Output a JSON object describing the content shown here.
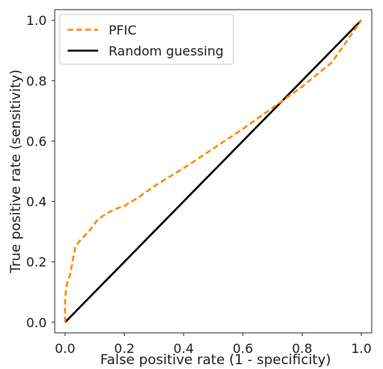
{
  "chart_data": {
    "type": "line",
    "title": "",
    "xlabel": "False positive rate (1 - specificity)",
    "ylabel": "True positive rate (sensitivity)",
    "xlim": [
      -0.035,
      1.035
    ],
    "ylim": [
      -0.035,
      1.035
    ],
    "xticks": [
      0.0,
      0.2,
      0.4,
      0.6,
      0.8,
      1.0
    ],
    "yticks": [
      0.0,
      0.2,
      0.4,
      0.6,
      0.8,
      1.0
    ],
    "xtick_labels": [
      "0.0",
      "0.2",
      "0.4",
      "0.6",
      "0.8",
      "1.0"
    ],
    "ytick_labels": [
      "0.0",
      "0.2",
      "0.4",
      "0.6",
      "0.8",
      "1.0"
    ],
    "grid": false,
    "legend_position": "top-left",
    "series": [
      {
        "name": "PFIC",
        "style": "dashed",
        "color": "#ff8c00",
        "x": [
          0.0,
          0.0,
          0.005,
          0.01,
          0.015,
          0.02,
          0.025,
          0.035,
          0.05,
          0.08,
          0.11,
          0.14,
          0.17,
          0.2,
          0.25,
          0.3,
          0.4,
          0.5,
          0.6,
          0.7,
          0.8,
          0.9,
          1.0
        ],
        "y": [
          0.0,
          0.08,
          0.12,
          0.14,
          0.15,
          0.17,
          0.2,
          0.25,
          0.27,
          0.3,
          0.34,
          0.36,
          0.375,
          0.385,
          0.415,
          0.45,
          0.51,
          0.575,
          0.64,
          0.71,
          0.78,
          0.86,
          1.0
        ]
      },
      {
        "name": "Random guessing",
        "style": "solid",
        "color": "#000000",
        "x": [
          0.0,
          1.0
        ],
        "y": [
          0.0,
          1.0
        ]
      }
    ]
  }
}
